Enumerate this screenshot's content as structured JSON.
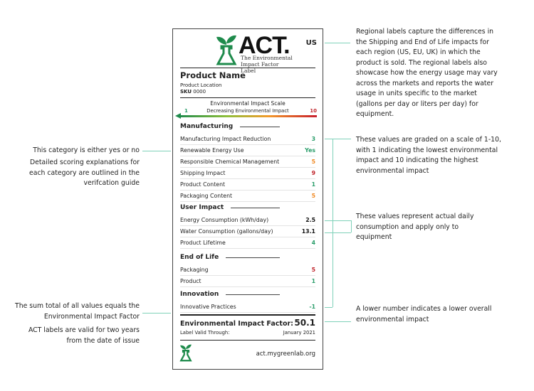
{
  "label": {
    "logo": {
      "text": "ACT.",
      "tagline_1": "The Environmental",
      "tagline_2": "Impact Factor Label"
    },
    "region": "US",
    "product_name": "Product Name",
    "product_location": "Product Location",
    "sku_label": "SKU",
    "sku_value": "0000",
    "scale": {
      "title": "Environmental Impact Scale",
      "subtitle": "Decreasing Environmental Impact",
      "low": "1",
      "high": "10"
    },
    "sections": [
      {
        "title": "Manufacturing",
        "rows": [
          {
            "label": "Manufacturing Impact Reduction",
            "value": "3",
            "color": "#2a9d6a"
          },
          {
            "label": "Renewable Energy Use",
            "value": "Yes",
            "color": "#2a9d6a"
          },
          {
            "label": "Responsible Chemical Management",
            "value": "5",
            "color": "#f08a24"
          },
          {
            "label": "Shipping Impact",
            "value": "9",
            "color": "#c0262d"
          },
          {
            "label": "Product Content",
            "value": "1",
            "color": "#2a9d6a"
          },
          {
            "label": "Packaging Content",
            "value": "5",
            "color": "#f08a24"
          }
        ]
      },
      {
        "title": "User Impact",
        "rows": [
          {
            "label": "Energy Consumption (kWh/day)",
            "value": "2.5",
            "color": "#111111"
          },
          {
            "label": "Water Consumption (gallons/day)",
            "value": "13.1",
            "color": "#111111"
          },
          {
            "label": "Product Lifetime",
            "value": "4",
            "color": "#2a9d6a"
          }
        ]
      },
      {
        "title": "End of Life",
        "rows": [
          {
            "label": "Packaging",
            "value": "5",
            "color": "#c0262d"
          },
          {
            "label": "Product",
            "value": "1",
            "color": "#2a9d6a"
          }
        ]
      },
      {
        "title": "Innovation",
        "rows": [
          {
            "label": "Innovative Practices",
            "value": "-1",
            "color": "#2a9d6a"
          }
        ]
      }
    ],
    "eif_label": "Environmental Impact Factor:",
    "eif_value": "50.1",
    "valid_label": "Label Valid Through:",
    "valid_value": "January 2021",
    "url": "act.mygreenlab.org"
  },
  "notes": {
    "yes_no": "This category is either yes or no",
    "scoring": "Detailed scoring explanations for each category are outlined in the verifcation guide",
    "sum": "The sum total of all values equals the Environmental Impact Factor",
    "valid": "ACT labels are valid for two years from the date of issue",
    "regional": "Regional labels capture the differences in the Shipping and End of Life impacts for each region (US, EU, UK) in which the product is sold. The regional labels also showcase how the energy usage may vary across the markets and reports the water usage in units specific to the market (gallons per day or liters per day) for equipment.",
    "graded": "These values are graded on a scale of 1-10, with 1 indicating the lowest environmental impact and 10 indicating the highest environmental impact",
    "actual": "These values represent actual daily consumption and apply only to equipment",
    "lower": "A lower number indicates a lower overall environmental impact"
  },
  "colors": {
    "green": "#1f8b4c",
    "connector": "#7fd1b9"
  }
}
